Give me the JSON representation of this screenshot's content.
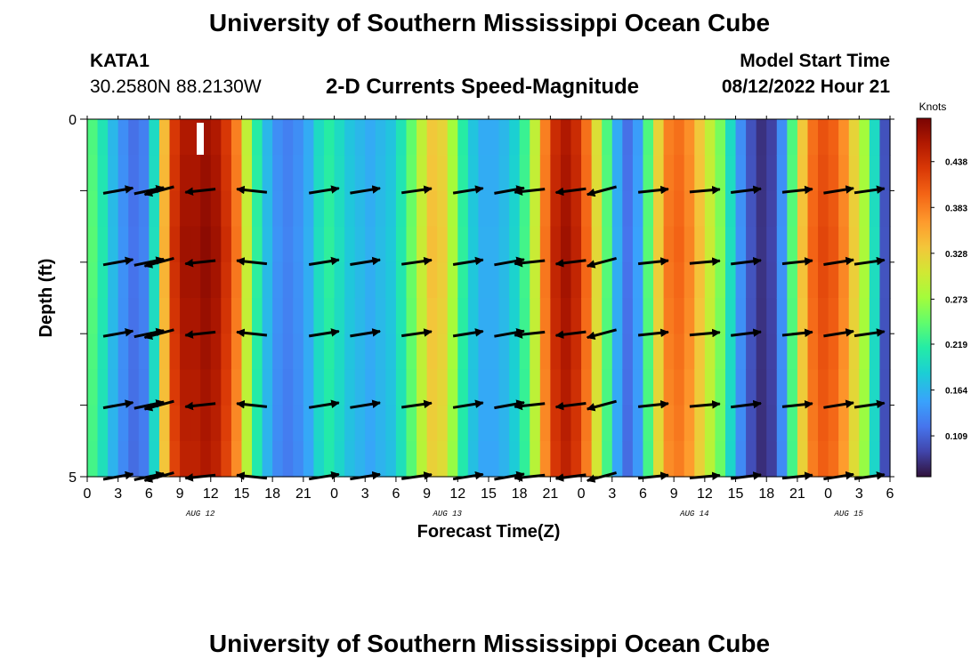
{
  "header": {
    "title": "University of Southern Mississippi Ocean Cube",
    "station": "KATA1",
    "coords": "30.2580N  88.2130W",
    "subtitle": "2-D Currents Speed-Magnitude",
    "model_start_label": "Model Start Time",
    "model_start_value": "08/12/2022 Hour 21"
  },
  "footer": {
    "title": "University of Southern Mississippi Ocean Cube"
  },
  "chart_data": {
    "type": "heatmap",
    "title": "2-D Currents Speed-Magnitude",
    "xlabel": "Forecast Time(Z)",
    "ylabel": "Depth (ft)",
    "x_tick_labels": [
      "0",
      "3",
      "6",
      "9",
      "12",
      "15",
      "18",
      "21",
      "0",
      "3",
      "6",
      "9",
      "12",
      "15",
      "18",
      "21",
      "0",
      "3",
      "6",
      "9",
      "12",
      "15",
      "18",
      "21",
      "0",
      "3",
      "6"
    ],
    "date_labels": [
      {
        "text": "AUG 12",
        "at_hour": 11
      },
      {
        "text": "AUG 13",
        "at_hour": 35
      },
      {
        "text": "AUG 14",
        "at_hour": 59
      },
      {
        "text": "AUG 15",
        "at_hour": 74
      }
    ],
    "x_range_hours": [
      0,
      78
    ],
    "y_tick_labels": [
      "0",
      "5"
    ],
    "y_range_ft": [
      0,
      5
    ],
    "colorbar": {
      "title": "Knots",
      "ticks": [
        "0.438",
        "0.383",
        "0.328",
        "0.273",
        "0.219",
        "0.164",
        "0.109"
      ],
      "tick_values": [
        0.438,
        0.383,
        0.328,
        0.273,
        0.219,
        0.164,
        0.109
      ],
      "vmin": 0.06,
      "vmax": 0.49
    },
    "speed_hours": [
      0,
      1,
      2,
      3,
      4,
      5,
      6,
      7,
      8,
      9,
      10,
      11,
      12,
      13,
      14,
      15,
      16,
      17,
      18,
      19,
      20,
      21,
      22,
      23,
      24,
      25,
      26,
      27,
      28,
      29,
      30,
      31,
      32,
      33,
      34,
      35,
      36,
      37,
      38,
      39,
      40,
      41,
      42,
      43,
      44,
      45,
      46,
      47,
      48,
      49,
      50,
      51,
      52,
      53,
      54,
      55,
      56,
      57,
      58,
      59,
      60,
      61,
      62,
      63,
      64,
      65,
      66,
      67,
      68,
      69,
      70,
      71,
      72,
      73,
      74,
      75,
      76,
      77
    ],
    "speed_knots": [
      0.24,
      0.21,
      0.17,
      0.14,
      0.12,
      0.13,
      0.2,
      0.35,
      0.44,
      0.47,
      0.47,
      0.48,
      0.47,
      0.44,
      0.39,
      0.3,
      0.22,
      0.17,
      0.14,
      0.13,
      0.14,
      0.16,
      0.2,
      0.22,
      0.2,
      0.18,
      0.17,
      0.16,
      0.17,
      0.18,
      0.21,
      0.25,
      0.3,
      0.34,
      0.33,
      0.28,
      0.22,
      0.18,
      0.16,
      0.16,
      0.17,
      0.19,
      0.23,
      0.3,
      0.39,
      0.45,
      0.47,
      0.45,
      0.4,
      0.32,
      0.24,
      0.16,
      0.12,
      0.15,
      0.24,
      0.33,
      0.39,
      0.4,
      0.38,
      0.34,
      0.3,
      0.26,
      0.2,
      0.14,
      0.1,
      0.08,
      0.09,
      0.14,
      0.24,
      0.34,
      0.4,
      0.42,
      0.41,
      0.38,
      0.33,
      0.28,
      0.2,
      0.1
    ],
    "arrow_depths_ft": [
      1,
      2,
      3,
      4,
      5
    ],
    "arrows": [
      {
        "hour": 3,
        "angle_deg": 10
      },
      {
        "hour": 6,
        "angle_deg": 12
      },
      {
        "hour": 7,
        "angle_deg": 195
      },
      {
        "hour": 11,
        "angle_deg": 186
      },
      {
        "hour": 16,
        "angle_deg": 174
      },
      {
        "hour": 23,
        "angle_deg": 9
      },
      {
        "hour": 27,
        "angle_deg": 9
      },
      {
        "hour": 32,
        "angle_deg": 8
      },
      {
        "hour": 37,
        "angle_deg": 9
      },
      {
        "hour": 41,
        "angle_deg": 10
      },
      {
        "hour": 43,
        "angle_deg": 186
      },
      {
        "hour": 47,
        "angle_deg": 187
      },
      {
        "hour": 50,
        "angle_deg": 195
      },
      {
        "hour": 55,
        "angle_deg": 6
      },
      {
        "hour": 60,
        "angle_deg": 5
      },
      {
        "hour": 64,
        "angle_deg": 7
      },
      {
        "hour": 69,
        "angle_deg": 6
      },
      {
        "hour": 73,
        "angle_deg": 9
      },
      {
        "hour": 76,
        "angle_deg": 8
      }
    ]
  }
}
